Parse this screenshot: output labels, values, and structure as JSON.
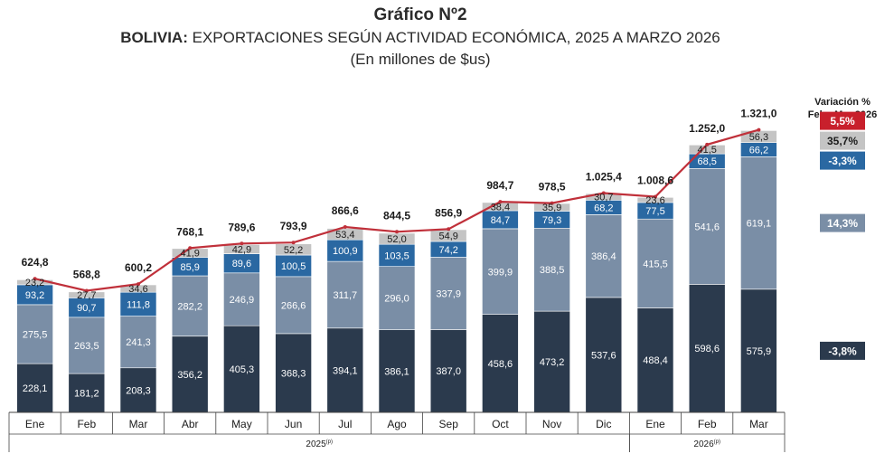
{
  "header": {
    "chart_number": "Gráfico Nº2",
    "title_bold": "BOLIVIA:",
    "title_rest": " EXPORTACIONES SEGÚN ACTIVIDAD ECONÓMICA, 2025 A MARZO 2026",
    "subtitle": "(En millones de $us)"
  },
  "chart_data": {
    "type": "bar",
    "stacked": true,
    "categories": [
      "Ene",
      "Feb",
      "Mar",
      "Abr",
      "May",
      "Jun",
      "Jul",
      "Ago",
      "Sep",
      "Oct",
      "Nov",
      "Dic",
      "Ene",
      "Feb",
      "Mar"
    ],
    "year_groups": [
      {
        "label": "2025",
        "superscript": "(p)",
        "start": 0,
        "end": 11
      },
      {
        "label": "2026",
        "superscript": "(p)",
        "start": 12,
        "end": 14
      }
    ],
    "series": [
      {
        "color": "#2b3a4d",
        "label_color": "#ffffff",
        "values": [
          228.1,
          181.2,
          208.3,
          356.2,
          405.3,
          368.3,
          394.1,
          386.1,
          387.0,
          458.6,
          473.2,
          537.6,
          488.4,
          598.6,
          575.9
        ],
        "labels": [
          "228,1",
          "181,2",
          "208,3",
          "356,2",
          "405,3",
          "368,3",
          "394,1",
          "386,1",
          "387,0",
          "458,6",
          "473,2",
          "537,6",
          "488,4",
          "598,6",
          "575,9"
        ]
      },
      {
        "color": "#7a8ea6",
        "label_color": "#ffffff",
        "values": [
          275.5,
          263.5,
          241.3,
          282.2,
          246.9,
          266.6,
          311.7,
          296.0,
          337.9,
          399.9,
          388.5,
          386.4,
          415.5,
          541.6,
          619.1
        ],
        "labels": [
          "275,5",
          "263,5",
          "241,3",
          "282,2",
          "246,9",
          "266,6",
          "311,7",
          "296,0",
          "337,9",
          "399,9",
          "388,5",
          "386,4",
          "415,5",
          "541,6",
          "619,1"
        ]
      },
      {
        "color": "#2a68a2",
        "label_color": "#ffffff",
        "values": [
          93.2,
          90.7,
          111.8,
          85.9,
          89.6,
          100.5,
          100.9,
          103.5,
          74.2,
          84.7,
          79.3,
          68.2,
          77.5,
          68.5,
          66.2
        ],
        "labels": [
          "93,2",
          "90,7",
          "111,8",
          "85,9",
          "89,6",
          "100,5",
          "100,9",
          "103,5",
          "74,2",
          "84,7",
          "79,3",
          "68,2",
          "77,5",
          "68,5",
          "66,2"
        ]
      },
      {
        "color": "#c4c4c4",
        "label_color": "#1b1b1b",
        "values": [
          23.2,
          27.7,
          34.6,
          41.9,
          42.9,
          52.2,
          53.4,
          52.0,
          54.9,
          38.4,
          35.9,
          30.7,
          23.6,
          41.5,
          56.3
        ],
        "labels": [
          "23,2",
          "27,7",
          "34,6",
          "41,9",
          "42,9",
          "52,2",
          "53,4",
          "52,0",
          "54,9",
          "38,4",
          "35,9",
          "30,7",
          "23,6",
          "41,5",
          "56,3"
        ]
      }
    ],
    "totals": [
      624.8,
      568.8,
      600.2,
      768.1,
      789.6,
      793.9,
      866.6,
      844.5,
      856.9,
      984.7,
      978.5,
      1025.4,
      1008.6,
      1252.0,
      1321.0
    ],
    "total_labels": [
      "624,8",
      "568,8",
      "600,2",
      "768,1",
      "789,6",
      "793,9",
      "866,6",
      "844,5",
      "856,9",
      "984,7",
      "978,5",
      "1.025,4",
      "1.008,6",
      "1.252,0",
      "1.321,0"
    ],
    "line_color": "#c0303a",
    "ylim": [
      0,
      1450
    ],
    "grid": false
  },
  "variation_panel": {
    "title_line1": "Variación %",
    "title_line2": "Feb - Mar 2026",
    "badges": [
      {
        "text": "5,5%",
        "bg": "#c8202c",
        "fg": "#ffffff",
        "aligns_with": "total"
      },
      {
        "text": "35,7%",
        "bg": "#c4c4c4",
        "fg": "#1b1b1b",
        "aligns_with": 3
      },
      {
        "text": "-3,3%",
        "bg": "#2a68a2",
        "fg": "#ffffff",
        "aligns_with": 2
      },
      {
        "text": "14,3%",
        "bg": "#7a8ea6",
        "fg": "#ffffff",
        "aligns_with": 1
      },
      {
        "text": "-3,8%",
        "bg": "#2b3a4d",
        "fg": "#ffffff",
        "aligns_with": 0
      }
    ]
  }
}
